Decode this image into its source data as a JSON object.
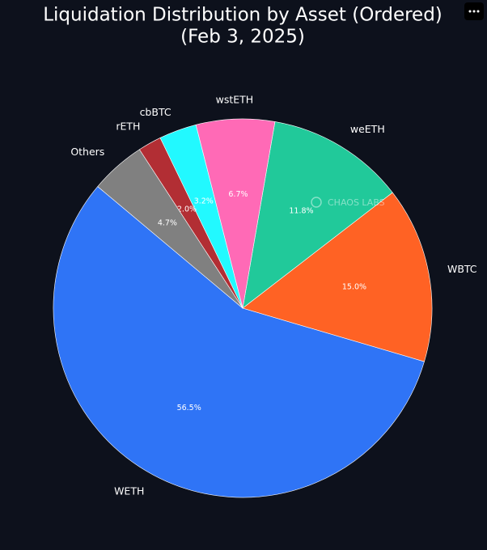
{
  "chart_data": {
    "type": "pie",
    "title": [
      "Liquidation Distribution by Asset (Ordered)",
      "(Feb 3, 2025)"
    ],
    "watermark": "CHAOS LABS",
    "categories": [
      "WETH",
      "WBTC",
      "weETH",
      "wstETH",
      "cbBTC",
      "rETH",
      "Others"
    ],
    "values": [
      56.5,
      15.0,
      11.8,
      6.7,
      3.2,
      2.0,
      4.7
    ],
    "value_labels": [
      "56.5%",
      "15.0%",
      "11.8%",
      "6.7%",
      "3.2%",
      "2.0%",
      "4.7%"
    ],
    "colors": [
      "#2f74f6",
      "#ff6224",
      "#21c99a",
      "#ff6ab6",
      "#22f9ff",
      "#b22e34",
      "#808080"
    ],
    "start_angle": 140,
    "counterclockwise": true
  }
}
